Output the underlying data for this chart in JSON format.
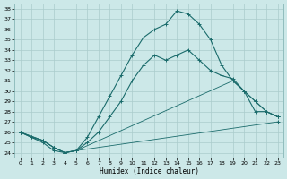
{
  "xlabel": "Humidex (Indice chaleur)",
  "bg_color": "#cce8e8",
  "grid_color": "#aacccc",
  "line_color": "#1a6b6b",
  "xlim": [
    -0.5,
    23.5
  ],
  "ylim": [
    23.5,
    38.5
  ],
  "xticks": [
    0,
    1,
    2,
    3,
    4,
    5,
    6,
    7,
    8,
    9,
    10,
    11,
    12,
    13,
    14,
    15,
    16,
    17,
    18,
    19,
    20,
    21,
    22,
    23
  ],
  "yticks": [
    24,
    25,
    26,
    27,
    28,
    29,
    30,
    31,
    32,
    33,
    34,
    35,
    36,
    37,
    38
  ],
  "line1_x": [
    0,
    1,
    2,
    3,
    4,
    5,
    6,
    7,
    8,
    9,
    10,
    11,
    12,
    13,
    14,
    15,
    16,
    17,
    18,
    19,
    20,
    21,
    22,
    23
  ],
  "line1_y": [
    26,
    25.5,
    25,
    24.2,
    24,
    24.2,
    25.5,
    27.5,
    29.5,
    31.5,
    33.5,
    35.2,
    36,
    36.5,
    37.8,
    37.5,
    36.5,
    35,
    32.5,
    31,
    30,
    29,
    28,
    27.5
  ],
  "line2_x": [
    0,
    1,
    2,
    3,
    4,
    5,
    6,
    7,
    8,
    9,
    10,
    11,
    12,
    13,
    14,
    15,
    16,
    17,
    18,
    19,
    20,
    21,
    22,
    23
  ],
  "line2_y": [
    26,
    25.5,
    25.2,
    24.5,
    24,
    24.2,
    25,
    26,
    27.5,
    29,
    31,
    32.5,
    33.5,
    33,
    33.5,
    34,
    33,
    32,
    31.5,
    31.2,
    30,
    28,
    28,
    27.5
  ],
  "line3_x": [
    0,
    2,
    3,
    4,
    5,
    19,
    20,
    21,
    22,
    23
  ],
  "line3_y": [
    26,
    25.2,
    24.5,
    24,
    24.2,
    31,
    30,
    29,
    28,
    27.5
  ],
  "line4_x": [
    0,
    2,
    3,
    4,
    5,
    23
  ],
  "line4_y": [
    26,
    25.2,
    24.5,
    24,
    24.2,
    27
  ]
}
